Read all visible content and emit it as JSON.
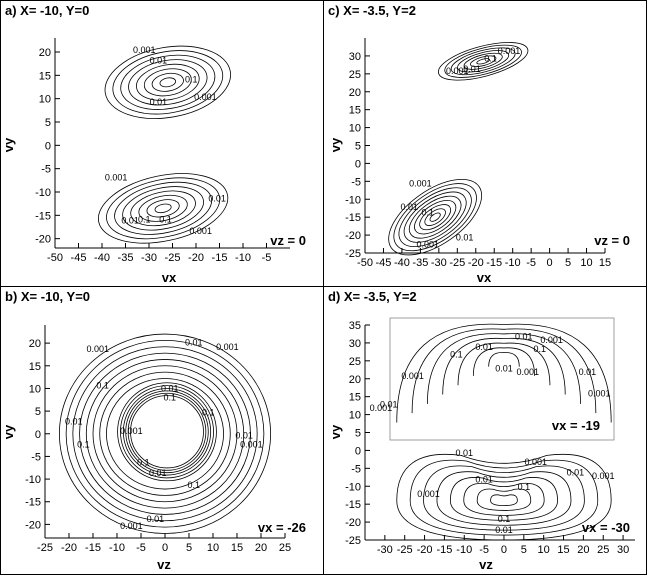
{
  "chart_data": [
    {
      "type": "contour",
      "panel": "a",
      "title": "a) X= -10, Y=0",
      "xlabel": "vx",
      "ylabel": "vy",
      "annotation": "vz = 0",
      "xlim": [
        -50,
        0
      ],
      "ylim": [
        -22,
        23
      ],
      "x_ticks": [
        -50,
        -45,
        -40,
        -35,
        -30,
        -25,
        -20,
        -15,
        -10,
        -5
      ],
      "y_ticks": [
        -20,
        -15,
        -10,
        -5,
        0,
        5,
        10,
        15,
        20
      ],
      "lobes": [
        {
          "cx": -26,
          "cy": 13.5,
          "rx": 13.5,
          "ry": 7.5,
          "angle_deg": -10,
          "levels": 8,
          "labels": [
            {
              "text": "0.001",
              "x": -31,
              "y": 19.8
            },
            {
              "text": "0.01",
              "x": -28,
              "y": 17.5
            },
            {
              "text": "0.1",
              "x": -21,
              "y": 13.5
            },
            {
              "text": "0.01",
              "x": -28,
              "y": 8.6
            },
            {
              "text": "0.001",
              "x": -18,
              "y": 9.7
            }
          ]
        },
        {
          "cx": -27,
          "cy": -13.5,
          "rx": 14,
          "ry": 7,
          "angle_deg": -12,
          "levels": 8,
          "labels": [
            {
              "text": "0.001",
              "x": -37,
              "y": -7.5
            },
            {
              "text": "0.01",
              "x": -15.5,
              "y": -12
            },
            {
              "text": "0.1",
              "x": -26.5,
              "y": -16.5
            },
            {
              "text": "0.1",
              "x": -31,
              "y": -16.5
            },
            {
              "text": "0.01",
              "x": -34,
              "y": -16.8
            },
            {
              "text": "0.001",
              "x": -19,
              "y": -19
            }
          ]
        }
      ]
    },
    {
      "type": "contour",
      "panel": "c",
      "title": "c) X= -3.5, Y=2",
      "xlabel": "vx",
      "ylabel": "vy",
      "annotation": "vz = 0",
      "xlim": [
        -50,
        15
      ],
      "ylim": [
        -25,
        35
      ],
      "x_ticks": [
        -50,
        -45,
        -40,
        -35,
        -30,
        -25,
        -20,
        -15,
        -10,
        -5,
        0,
        5,
        10,
        15
      ],
      "y_ticks": [
        -25,
        -20,
        -15,
        -10,
        -5,
        0,
        5,
        10,
        15,
        20,
        25,
        30
      ],
      "lobes": [
        {
          "cx": -18,
          "cy": 28.5,
          "rx": 12.5,
          "ry": 4.2,
          "angle_deg": -15,
          "levels": 7,
          "labels": [
            {
              "text": "0.001",
              "x": -11,
              "y": 30.5
            },
            {
              "text": "0.1",
              "x": -16,
              "y": 28.5
            },
            {
              "text": "0.01",
              "x": -21,
              "y": 25.5
            },
            {
              "text": "0.001",
              "x": -25,
              "y": 25
            }
          ]
        },
        {
          "cx": -31,
          "cy": -15,
          "rx": 14.5,
          "ry": 7.5,
          "angle_deg": -35,
          "levels": 9,
          "labels": [
            {
              "text": "0.001",
              "x": -35,
              "y": -6.5
            },
            {
              "text": "0.01",
              "x": -38,
              "y": -13
            },
            {
              "text": "0.1",
              "x": -33,
              "y": -14.5
            },
            {
              "text": "0.01",
              "x": -23,
              "y": -21.5
            },
            {
              "text": "0.001",
              "x": -33,
              "y": -23.5
            }
          ]
        }
      ]
    },
    {
      "type": "contour",
      "panel": "b",
      "title": "b) X= -10, Y=0",
      "xlabel": "vz",
      "ylabel": "vy",
      "annotation": "vx = -26",
      "xlim": [
        -25,
        25
      ],
      "ylim": [
        -23,
        24
      ],
      "x_ticks": [
        -25,
        -20,
        -15,
        -10,
        -5,
        0,
        5,
        10,
        15,
        20,
        25
      ],
      "y_ticks": [
        -20,
        -15,
        -10,
        -5,
        0,
        5,
        10,
        15,
        20
      ],
      "rings_outer": [
        22,
        20.6,
        19.2,
        17.8,
        16.4,
        15,
        13.6,
        12.2
      ],
      "rings_inner": [
        10.3,
        9.7,
        9.1,
        8.6,
        8.1,
        7.6
      ],
      "labels": [
        {
          "text": "0.001",
          "x": -14,
          "y": 18
        },
        {
          "text": "0.01",
          "x": 6,
          "y": 19.5
        },
        {
          "text": "0.001",
          "x": 13,
          "y": 18.5
        },
        {
          "text": "0.1",
          "x": -13,
          "y": 10
        },
        {
          "text": "0.01",
          "x": 1,
          "y": 9.3
        },
        {
          "text": "0.1",
          "x": 1,
          "y": 7.3
        },
        {
          "text": "0.1",
          "x": 9,
          "y": 4
        },
        {
          "text": "0.001",
          "x": -7,
          "y": 0
        },
        {
          "text": "0.01",
          "x": -19,
          "y": 2
        },
        {
          "text": "0.1",
          "x": -17,
          "y": -3
        },
        {
          "text": "0.01",
          "x": 16.5,
          "y": -1
        },
        {
          "text": "0.001",
          "x": 18,
          "y": -3
        },
        {
          "text": "0.1",
          "x": -4.5,
          "y": -7
        },
        {
          "text": "0.01",
          "x": -1.5,
          "y": -9.3
        },
        {
          "text": "0.1",
          "x": 6,
          "y": -12
        },
        {
          "text": "0.01",
          "x": -2,
          "y": -19.5
        },
        {
          "text": "0.001",
          "x": -7,
          "y": -21
        }
      ]
    },
    {
      "type": "contour",
      "panel": "d",
      "title": "d) X= -3.5, Y=2",
      "xlabel": "vz",
      "ylabel": "vy",
      "annotation": "vx = -30",
      "xlim": [
        -35,
        33
      ],
      "ylim": [
        -25,
        35
      ],
      "x_ticks": [
        -30,
        -25,
        -20,
        -15,
        -10,
        -5,
        0,
        5,
        10,
        15,
        20,
        25,
        30
      ],
      "y_ticks": [
        -25,
        -20,
        -15,
        -10,
        -5,
        0,
        5,
        10,
        15,
        20,
        25,
        30,
        35
      ],
      "lower_lobe": {
        "cx": 0,
        "cy": -14,
        "rx_outer": 27,
        "ry_outer": 11,
        "levels": 8,
        "labels": [
          {
            "text": "0.01",
            "x": -10,
            "y": -1.5
          },
          {
            "text": "0.001",
            "x": 8,
            "y": -4
          },
          {
            "text": "0.01",
            "x": -5,
            "y": -9
          },
          {
            "text": "0.1",
            "x": 5,
            "y": -11
          },
          {
            "text": "0.001",
            "x": -19,
            "y": -13
          },
          {
            "text": "0.01",
            "x": 18,
            "y": -7
          },
          {
            "text": "0.001",
            "x": 25,
            "y": -8
          },
          {
            "text": "0.1",
            "x": 0,
            "y": -20
          },
          {
            "text": "0.01",
            "x": 0,
            "y": -23
          }
        ]
      },
      "inset": {
        "annotation": "vx = -19",
        "cx": 0,
        "cy": 26,
        "rx_outer": 27,
        "ry_outer": 7,
        "levels": 7,
        "labels": [
          {
            "text": "0.01",
            "x": 5,
            "y": 31
          },
          {
            "text": "0.001",
            "x": 12,
            "y": 30
          },
          {
            "text": "0.01",
            "x": -5,
            "y": 28
          },
          {
            "text": "0.1",
            "x": 9,
            "y": 27.5
          },
          {
            "text": "0.1",
            "x": -12,
            "y": 26
          },
          {
            "text": "0.01",
            "x": 0,
            "y": 22
          },
          {
            "text": "0.001",
            "x": 6,
            "y": 21
          },
          {
            "text": "0.001",
            "x": -23,
            "y": 20
          },
          {
            "text": "0.01",
            "x": 21,
            "y": 21
          },
          {
            "text": "0.001",
            "x": 24,
            "y": 15
          },
          {
            "text": "0.01",
            "x": -29,
            "y": 12
          },
          {
            "text": "0.001",
            "x": -31,
            "y": 11
          }
        ]
      }
    }
  ]
}
